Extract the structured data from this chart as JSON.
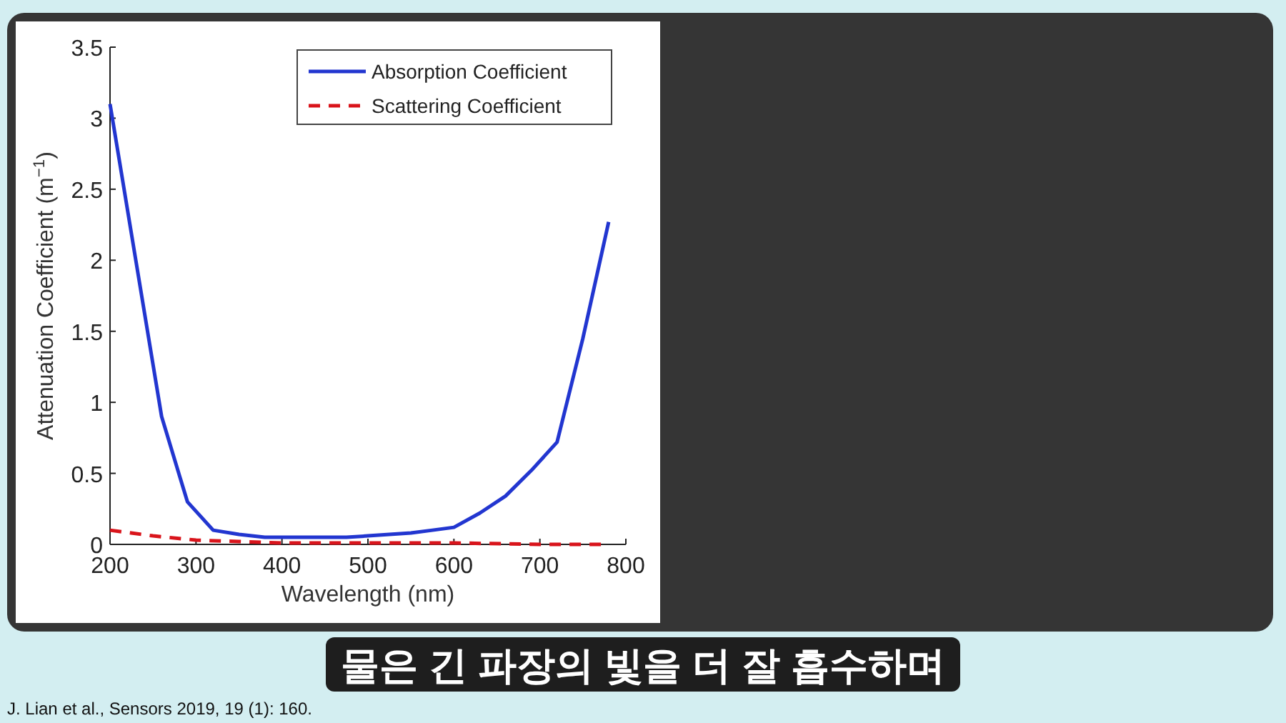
{
  "chart_data": {
    "type": "line",
    "xlabel": "Wavelength (nm)",
    "ylabel": "Attenuation Coefficient (m$^{−1}$)",
    "xlim": [
      200,
      800
    ],
    "ylim": [
      0,
      3.5
    ],
    "xticks": [
      200,
      300,
      400,
      500,
      600,
      700,
      800
    ],
    "yticks": [
      0,
      0.5,
      1,
      1.5,
      2,
      2.5,
      3,
      3.5
    ],
    "legend": "top right",
    "grid": false,
    "series": [
      {
        "name": "Absorption Coefficient",
        "color": "#2236d0",
        "line_style": "solid",
        "x": [
          200,
          230,
          260,
          290,
          320,
          350,
          380,
          420,
          475,
          500,
          550,
          575,
          600,
          630,
          660,
          690,
          720,
          750,
          780
        ],
        "values": [
          3.1,
          2.0,
          0.9,
          0.3,
          0.1,
          0.07,
          0.05,
          0.05,
          0.05,
          0.06,
          0.08,
          0.1,
          0.12,
          0.22,
          0.34,
          0.52,
          0.72,
          1.45,
          2.27
        ]
      },
      {
        "name": "Scattering Coefficient",
        "color": "#d9141b",
        "line_style": "dashed",
        "x": [
          200,
          250,
          300,
          350,
          400,
          500,
          600,
          700,
          780
        ],
        "values": [
          0.1,
          0.06,
          0.03,
          0.02,
          0.01,
          0.01,
          0.01,
          0.0,
          0.0
        ]
      }
    ],
    "annotations": [
      "물은 긴 파장의 빛을 더 잘 흡수하며",
      "J. Lian et al., Sensors 2019, 19 (1): 160."
    ]
  }
}
